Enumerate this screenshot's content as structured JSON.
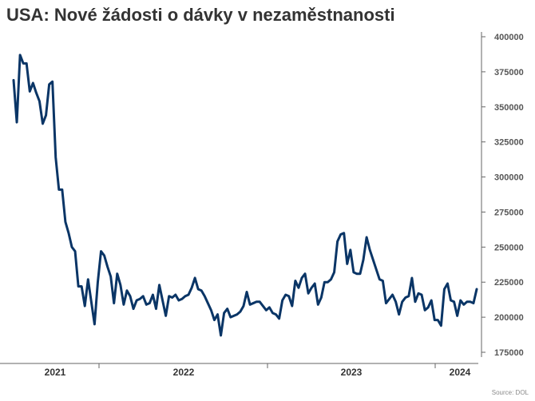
{
  "title": "USA: Nové žádosti o dávky v nezaměstnanosti",
  "source": "Source: DOL",
  "colors": {
    "line": "#0a3566",
    "axis": "#666666"
  },
  "chart_data": {
    "type": "line",
    "title": "USA: Nové žádosti o dávky v nezaměstnanosti",
    "xlabel": "",
    "ylabel": "",
    "ylim": [
      175000,
      400000
    ],
    "y_ticks": [
      "400000",
      "375000",
      "350000",
      "325000",
      "300000",
      "275000",
      "250000",
      "225000",
      "200000",
      "175000"
    ],
    "x_ticks": [
      "2021",
      "2022",
      "2023",
      "2024"
    ],
    "grid": false,
    "series": [
      {
        "values": [
          369000,
          339000,
          387000,
          381000,
          381000,
          361000,
          367000,
          360000,
          354000,
          338000,
          344000,
          366000,
          368000,
          314000,
          291000,
          291000,
          268000,
          260000,
          250000,
          247000,
          222000,
          222000,
          208000,
          227000,
          211000,
          195000,
          225000,
          247000,
          244000,
          236000,
          229000,
          210000,
          231000,
          223000,
          209000,
          219000,
          215000,
          206000,
          212000,
          213000,
          215000,
          209000,
          210000,
          216000,
          206000,
          223000,
          212000,
          201000,
          215000,
          214000,
          216000,
          212000,
          213000,
          215000,
          216000,
          221000,
          228000,
          220000,
          219000,
          215000,
          210000,
          205000,
          198000,
          202000,
          187000,
          203000,
          206000,
          200000,
          201000,
          202000,
          204000,
          208000,
          218000,
          209000,
          210000,
          211000,
          211000,
          208000,
          205000,
          207000,
          203000,
          202000,
          199000,
          212000,
          216000,
          215000,
          208000,
          226000,
          221000,
          228000,
          231000,
          217000,
          221000,
          224000,
          209000,
          214000,
          225000,
          225000,
          227000,
          232000,
          254000,
          259000,
          260000,
          238000,
          248000,
          232000,
          231000,
          231000,
          241000,
          257000,
          248000,
          241000,
          234000,
          227000,
          226000,
          210000,
          213000,
          216000,
          211000,
          202000,
          211000,
          214000,
          215000,
          228000,
          211000,
          217000,
          216000,
          205000,
          207000,
          212000,
          198000,
          198000,
          194000,
          220000,
          224000,
          212000,
          211000,
          201000,
          212000,
          209000,
          211000,
          211000,
          210000,
          220000
        ]
      }
    ]
  }
}
